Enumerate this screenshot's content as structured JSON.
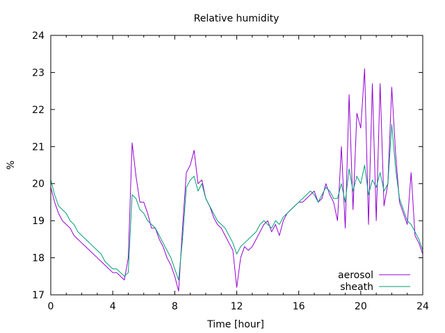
{
  "chart_data": {
    "type": "line",
    "title": "Relative humidity",
    "xlabel": "Time [hour]",
    "ylabel": "%",
    "xlim": [
      0,
      24
    ],
    "ylim": [
      17,
      24
    ],
    "xticks": [
      0,
      4,
      8,
      12,
      16,
      20,
      24
    ],
    "yticks": [
      17,
      18,
      19,
      20,
      21,
      22,
      23,
      24
    ],
    "grid": false,
    "legend_position": "bottom-right",
    "series": [
      {
        "name": "aerosol",
        "color": "#9400d3",
        "x": [
          0,
          0.25,
          0.5,
          0.75,
          1,
          1.25,
          1.5,
          1.75,
          2,
          2.25,
          2.5,
          2.75,
          3,
          3.25,
          3.5,
          3.75,
          4,
          4.25,
          4.5,
          4.75,
          5,
          5.25,
          5.5,
          5.75,
          6,
          6.25,
          6.5,
          6.75,
          7,
          7.25,
          7.5,
          7.75,
          8,
          8.25,
          8.5,
          8.75,
          9,
          9.25,
          9.5,
          9.75,
          10,
          10.25,
          10.5,
          10.75,
          11,
          11.25,
          11.5,
          11.75,
          12,
          12.25,
          12.5,
          12.75,
          13,
          13.25,
          13.5,
          13.75,
          14,
          14.25,
          14.5,
          14.75,
          15,
          15.25,
          15.5,
          15.75,
          16,
          16.25,
          16.5,
          16.75,
          17,
          17.25,
          17.5,
          17.75,
          18,
          18.25,
          18.5,
          18.75,
          19,
          19.25,
          19.5,
          19.75,
          20,
          20.25,
          20.5,
          20.75,
          21,
          21.25,
          21.5,
          21.75,
          22,
          22.25,
          22.5,
          22.75,
          23,
          23.25,
          23.5,
          23.75,
          24
        ],
        "y": [
          19.9,
          19.5,
          19.2,
          19.0,
          18.9,
          18.8,
          18.6,
          18.5,
          18.4,
          18.3,
          18.2,
          18.1,
          18.0,
          17.9,
          17.8,
          17.7,
          17.6,
          17.6,
          17.5,
          17.4,
          18.0,
          21.1,
          20.2,
          19.5,
          19.5,
          19.2,
          18.8,
          18.8,
          18.5,
          18.3,
          18.0,
          17.8,
          17.5,
          17.1,
          18.8,
          20.3,
          20.5,
          20.9,
          20.0,
          20.1,
          19.6,
          19.4,
          19.1,
          18.9,
          18.8,
          18.6,
          18.4,
          18.2,
          17.2,
          18.0,
          18.3,
          18.2,
          18.3,
          18.5,
          18.7,
          18.9,
          19.0,
          18.7,
          18.9,
          18.6,
          19.0,
          19.2,
          19.3,
          19.4,
          19.5,
          19.5,
          19.6,
          19.7,
          19.8,
          19.5,
          19.6,
          20.0,
          19.7,
          19.5,
          19.0,
          21.0,
          18.8,
          22.4,
          19.3,
          21.9,
          21.5,
          23.1,
          18.9,
          22.7,
          19.0,
          22.7,
          19.4,
          20.0,
          22.6,
          20.8,
          19.5,
          19.2,
          18.9,
          20.3,
          18.6,
          18.4,
          18.1
        ]
      },
      {
        "name": "sheath",
        "color": "#009e73",
        "x": [
          0,
          0.25,
          0.5,
          0.75,
          1,
          1.25,
          1.5,
          1.75,
          2,
          2.25,
          2.5,
          2.75,
          3,
          3.25,
          3.5,
          3.75,
          4,
          4.25,
          4.5,
          4.75,
          5,
          5.25,
          5.5,
          5.75,
          6,
          6.25,
          6.5,
          6.75,
          7,
          7.25,
          7.5,
          7.75,
          8,
          8.25,
          8.5,
          8.75,
          9,
          9.25,
          9.5,
          9.75,
          10,
          10.25,
          10.5,
          10.75,
          11,
          11.25,
          11.5,
          11.75,
          12,
          12.25,
          12.5,
          12.75,
          13,
          13.25,
          13.5,
          13.75,
          14,
          14.25,
          14.5,
          14.75,
          15,
          15.25,
          15.5,
          15.75,
          16,
          16.25,
          16.5,
          16.75,
          17,
          17.25,
          17.5,
          17.75,
          18,
          18.25,
          18.5,
          18.75,
          19,
          19.25,
          19.5,
          19.75,
          20,
          20.25,
          20.5,
          20.75,
          21,
          21.25,
          21.5,
          21.75,
          22,
          22.25,
          22.5,
          22.75,
          23,
          23.25,
          23.5,
          23.75,
          24
        ],
        "y": [
          20.1,
          19.7,
          19.4,
          19.3,
          19.2,
          19.0,
          18.9,
          18.7,
          18.6,
          18.5,
          18.4,
          18.3,
          18.2,
          18.1,
          17.9,
          17.8,
          17.7,
          17.7,
          17.6,
          17.5,
          17.6,
          19.7,
          19.6,
          19.3,
          19.2,
          19.0,
          18.9,
          18.8,
          18.6,
          18.4,
          18.2,
          18.0,
          17.7,
          17.4,
          18.5,
          19.9,
          20.1,
          20.2,
          19.8,
          20.0,
          19.6,
          19.4,
          19.2,
          19.0,
          18.9,
          18.8,
          18.6,
          18.4,
          18.1,
          18.3,
          18.4,
          18.5,
          18.6,
          18.7,
          18.9,
          19.0,
          18.9,
          18.8,
          19.0,
          18.9,
          19.1,
          19.2,
          19.3,
          19.4,
          19.5,
          19.6,
          19.7,
          19.8,
          19.7,
          19.5,
          19.7,
          19.9,
          19.8,
          19.6,
          19.6,
          20.0,
          19.5,
          20.4,
          19.8,
          20.2,
          20.0,
          20.5,
          19.7,
          20.1,
          19.9,
          20.3,
          19.8,
          20.0,
          21.6,
          20.4,
          19.6,
          19.3,
          19.0,
          18.9,
          18.7,
          18.5,
          18.2
        ]
      }
    ]
  }
}
